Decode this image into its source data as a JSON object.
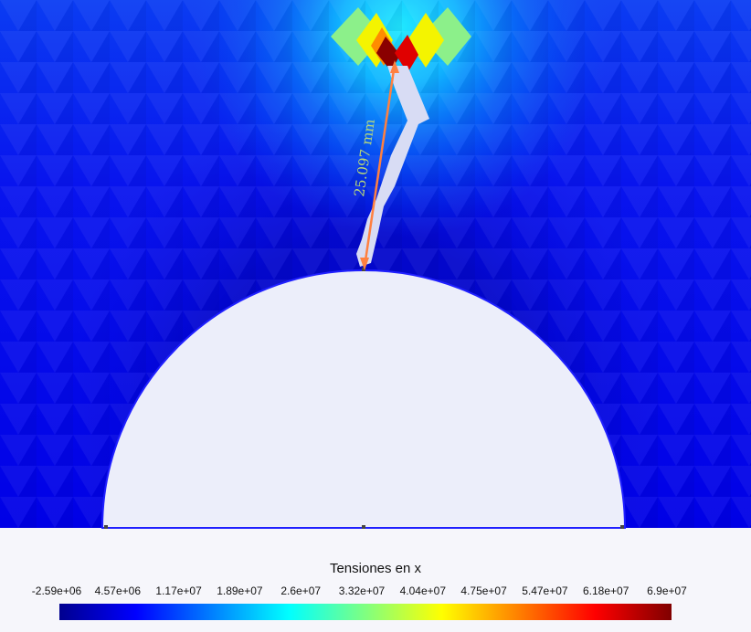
{
  "legend": {
    "title": "Tensiones en x",
    "ticks": [
      "-2.59e+06",
      "4.57e+06",
      "1.17e+07",
      "1.89e+07",
      "2.6e+07",
      "3.32e+07",
      "4.04e+07",
      "4.75e+07",
      "5.47e+07",
      "6.18e+07",
      "6.9e+07"
    ],
    "colors": [
      "#00008f",
      "#0000ff",
      "#0080ff",
      "#00ffff",
      "#80ff80",
      "#ffff00",
      "#ff8000",
      "#ff0000",
      "#800000"
    ]
  },
  "measurement": {
    "label": "25.097 mm",
    "color": "#ff8040",
    "label_color": "#b8d87a"
  },
  "colors": {
    "mesh_base": "#0a0ae6",
    "hole_fill": "#eceefa",
    "crack_fill": "#d8dcf4",
    "background": "#f6f6fb"
  }
}
